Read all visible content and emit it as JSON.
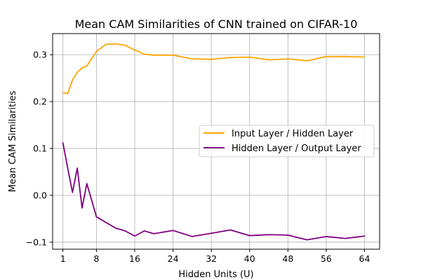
{
  "chart_data": {
    "type": "line",
    "title": "Mean CAM Similarities of CNN trained on CIFAR-10",
    "xlabel": "Hidden Units (U)",
    "ylabel": "Mean CAM Similarities",
    "xlim": [
      -1.15,
      67.15
    ],
    "ylim": [
      -0.115,
      0.345
    ],
    "xticks": [
      {
        "value": 1,
        "label": "1"
      },
      {
        "value": 8,
        "label": "8"
      },
      {
        "value": 16,
        "label": "16"
      },
      {
        "value": 24,
        "label": "24"
      },
      {
        "value": 32,
        "label": "32"
      },
      {
        "value": 40,
        "label": "40"
      },
      {
        "value": 48,
        "label": "48"
      },
      {
        "value": 56,
        "label": "56"
      },
      {
        "value": 64,
        "label": "64"
      }
    ],
    "yticks": [
      {
        "value": -0.1,
        "label": "−0.1"
      },
      {
        "value": 0.0,
        "label": "0.0"
      },
      {
        "value": 0.1,
        "label": "0.1"
      },
      {
        "value": 0.2,
        "label": "0.2"
      },
      {
        "value": 0.3,
        "label": "0.3"
      }
    ],
    "grid": true,
    "legend_position": "center-right",
    "series": [
      {
        "name": "Input Layer / Hidden Layer",
        "color": "#ffa500",
        "x": [
          1,
          2,
          3,
          4,
          5,
          6,
          8,
          10,
          12,
          14,
          16,
          18,
          20,
          24,
          28,
          32,
          36,
          40,
          44,
          48,
          52,
          56,
          60,
          64
        ],
        "y": [
          0.219,
          0.217,
          0.246,
          0.262,
          0.272,
          0.276,
          0.307,
          0.322,
          0.323,
          0.32,
          0.31,
          0.301,
          0.299,
          0.299,
          0.291,
          0.29,
          0.294,
          0.295,
          0.289,
          0.291,
          0.287,
          0.296,
          0.296,
          0.295
        ]
      },
      {
        "name": "Hidden Layer / Output Layer",
        "color": "#800080",
        "x": [
          1,
          2,
          3,
          4,
          5,
          6,
          8,
          10,
          12,
          14,
          16,
          18,
          20,
          24,
          28,
          32,
          36,
          40,
          44,
          48,
          52,
          56,
          60,
          64
        ],
        "y": [
          0.112,
          0.058,
          0.006,
          0.058,
          -0.027,
          0.025,
          -0.046,
          -0.058,
          -0.07,
          -0.076,
          -0.087,
          -0.076,
          -0.082,
          -0.075,
          -0.088,
          -0.081,
          -0.074,
          -0.086,
          -0.084,
          -0.085,
          -0.095,
          -0.088,
          -0.092,
          -0.087
        ]
      }
    ]
  }
}
